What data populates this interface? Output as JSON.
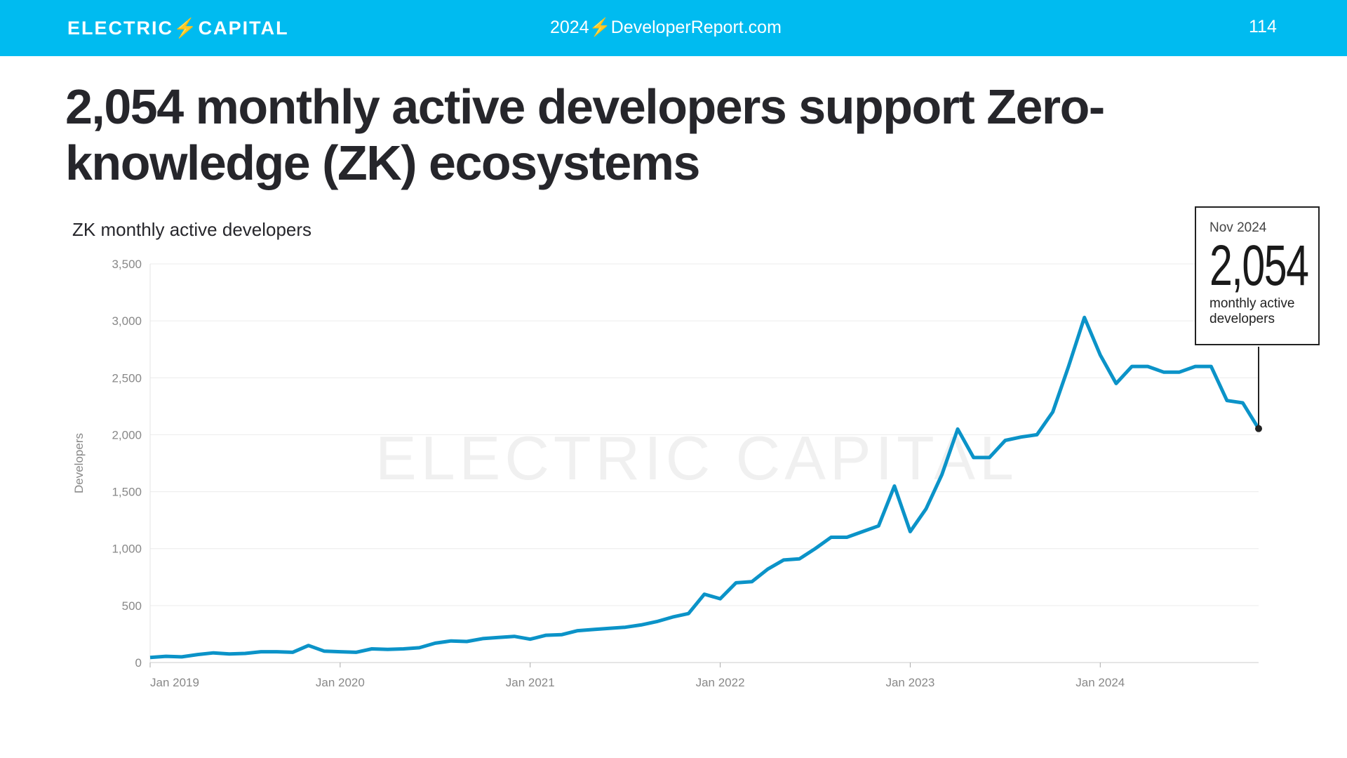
{
  "header": {
    "logo": "ELECTRIC⚡CAPITAL",
    "site": "2024⚡DeveloperReport.com",
    "page_number": "114",
    "color": "#00bbf0"
  },
  "title": "2,054 monthly active developers support Zero-knowledge (ZK) ecosystems",
  "watermark": "ELECTRIC CAPITAL",
  "callout": {
    "date": "Nov 2024",
    "value": "2,054",
    "label": "monthly active developers"
  },
  "chart_data": {
    "type": "line",
    "title": "ZK monthly active developers",
    "ylabel": "Developers",
    "xlabel": "",
    "ylim": [
      0,
      3500
    ],
    "yticks": [
      0,
      500,
      1000,
      1500,
      2000,
      2500,
      3000,
      3500
    ],
    "ytick_labels": [
      "0",
      "500",
      "1,000",
      "1,500",
      "2,000",
      "2,500",
      "3,000",
      "3,500"
    ],
    "xtick_labels": [
      "Jan 2019",
      "Jan 2020",
      "Jan 2021",
      "Jan 2022",
      "Jan 2023",
      "Jan 2024"
    ],
    "x_start": "2019-01",
    "x_end": "2024-11",
    "grid": true,
    "color": "#0b93c8",
    "series": [
      {
        "values": [
          45,
          55,
          50,
          70,
          85,
          75,
          80,
          95,
          95,
          90,
          150,
          100,
          95,
          90,
          120,
          115,
          120,
          130,
          170,
          190,
          185,
          210,
          220,
          230,
          205,
          240,
          245,
          280,
          290,
          300,
          310,
          330,
          360,
          400,
          430,
          600,
          560,
          700,
          710,
          820,
          900,
          910,
          1000,
          1100,
          1100,
          1150,
          1200,
          1550,
          1150,
          1350,
          1650,
          2050,
          1800,
          1800,
          1950,
          1980,
          2000,
          2200,
          2600,
          3030,
          2700,
          2450,
          2600,
          2600,
          2550,
          2550,
          2600,
          2600,
          2300,
          2280,
          2054
        ]
      }
    ]
  }
}
